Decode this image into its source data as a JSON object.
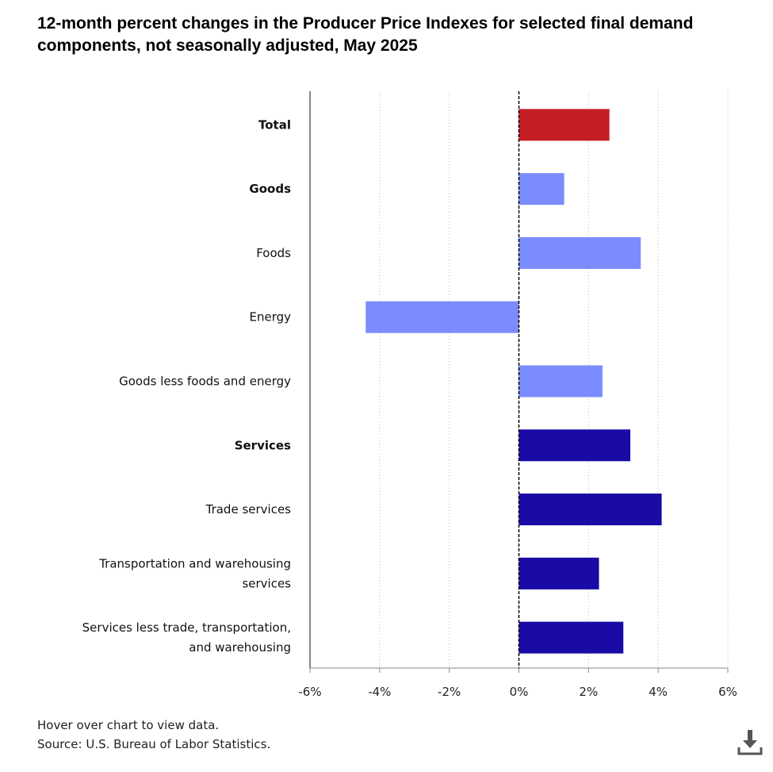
{
  "title": "12-month percent changes in the Producer Price Indexes for selected final demand components, not seasonally adjusted, May 2025",
  "chart_data": {
    "type": "bar",
    "orientation": "horizontal",
    "categories": [
      "Total",
      "Goods",
      "Foods",
      "Energy",
      "Goods less foods and energy",
      "Services",
      "Trade services",
      "Transportation and warehousing services",
      "Services less trade, transportation, and warehousing"
    ],
    "category_bold": [
      true,
      true,
      false,
      false,
      false,
      true,
      false,
      false,
      false
    ],
    "values": [
      2.6,
      1.3,
      3.5,
      -4.4,
      2.4,
      3.2,
      4.1,
      2.3,
      3.0
    ],
    "bar_colors": [
      "#c41e24",
      "#7b8cff",
      "#7b8cff",
      "#7b8cff",
      "#7b8cff",
      "#1a0aa6",
      "#1a0aa6",
      "#1a0aa6",
      "#1a0aa6"
    ],
    "xlim": [
      -6,
      6
    ],
    "xticks": [
      -6,
      -4,
      -2,
      0,
      2,
      4,
      6
    ],
    "xtick_labels": [
      "-6%",
      "-4%",
      "-2%",
      "0%",
      "2%",
      "4%",
      "6%"
    ],
    "grid": "vertical dotted",
    "title": "12-month percent changes in the Producer Price Indexes for selected final demand components, not seasonally adjusted, May 2025",
    "xlabel": "",
    "ylabel": ""
  },
  "footer": {
    "hint": "Hover over chart to view data.",
    "source": "Source: U.S. Bureau of Labor Statistics."
  },
  "download_icon": "download-icon"
}
